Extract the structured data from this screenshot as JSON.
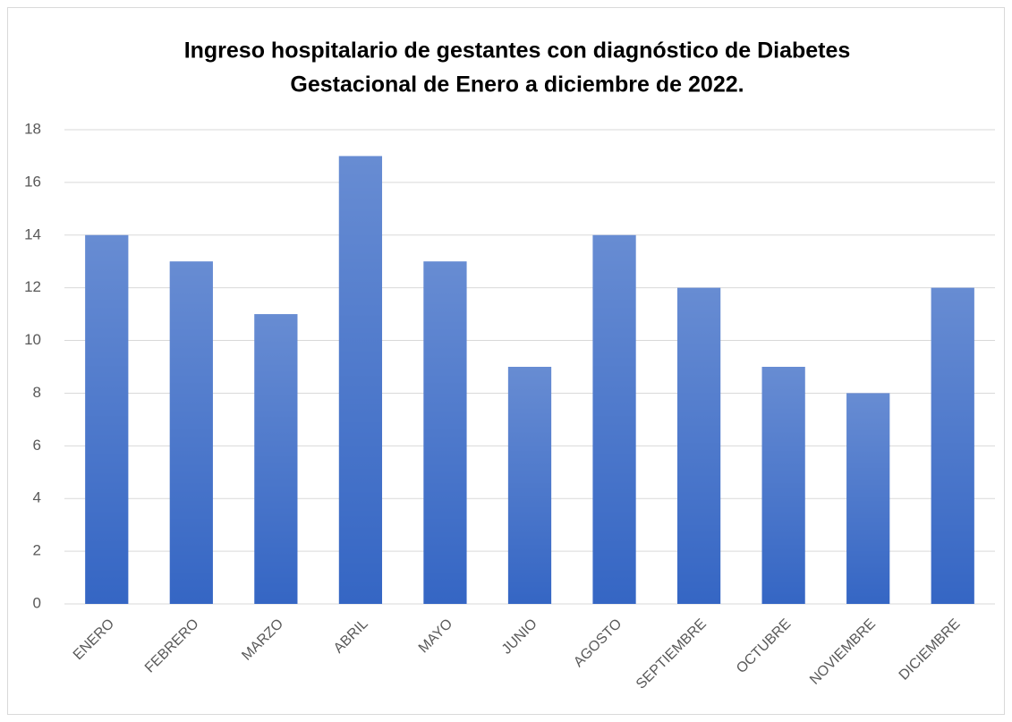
{
  "chart_data": {
    "type": "bar",
    "title": [
      "Ingreso hospitalario de gestantes con diagnóstico de Diabetes",
      "Gestacional de Enero a diciembre de 2022."
    ],
    "categories": [
      "ENERO",
      "FEBRERO",
      "MARZO",
      "ABRIL",
      "MAYO",
      "JUNIO",
      "AGOSTO",
      "SEPTIEMBRE",
      "OCTUBRE",
      "NOVIEMBRE",
      "DICIEMBRE"
    ],
    "values": [
      14,
      13,
      11,
      17,
      13,
      9,
      14,
      12,
      9,
      8,
      12
    ],
    "color": "#3566c4",
    "ylim": [
      0,
      18
    ],
    "yticks": [
      0,
      2,
      4,
      6,
      8,
      10,
      12,
      14,
      16,
      18
    ],
    "grid": true
  }
}
